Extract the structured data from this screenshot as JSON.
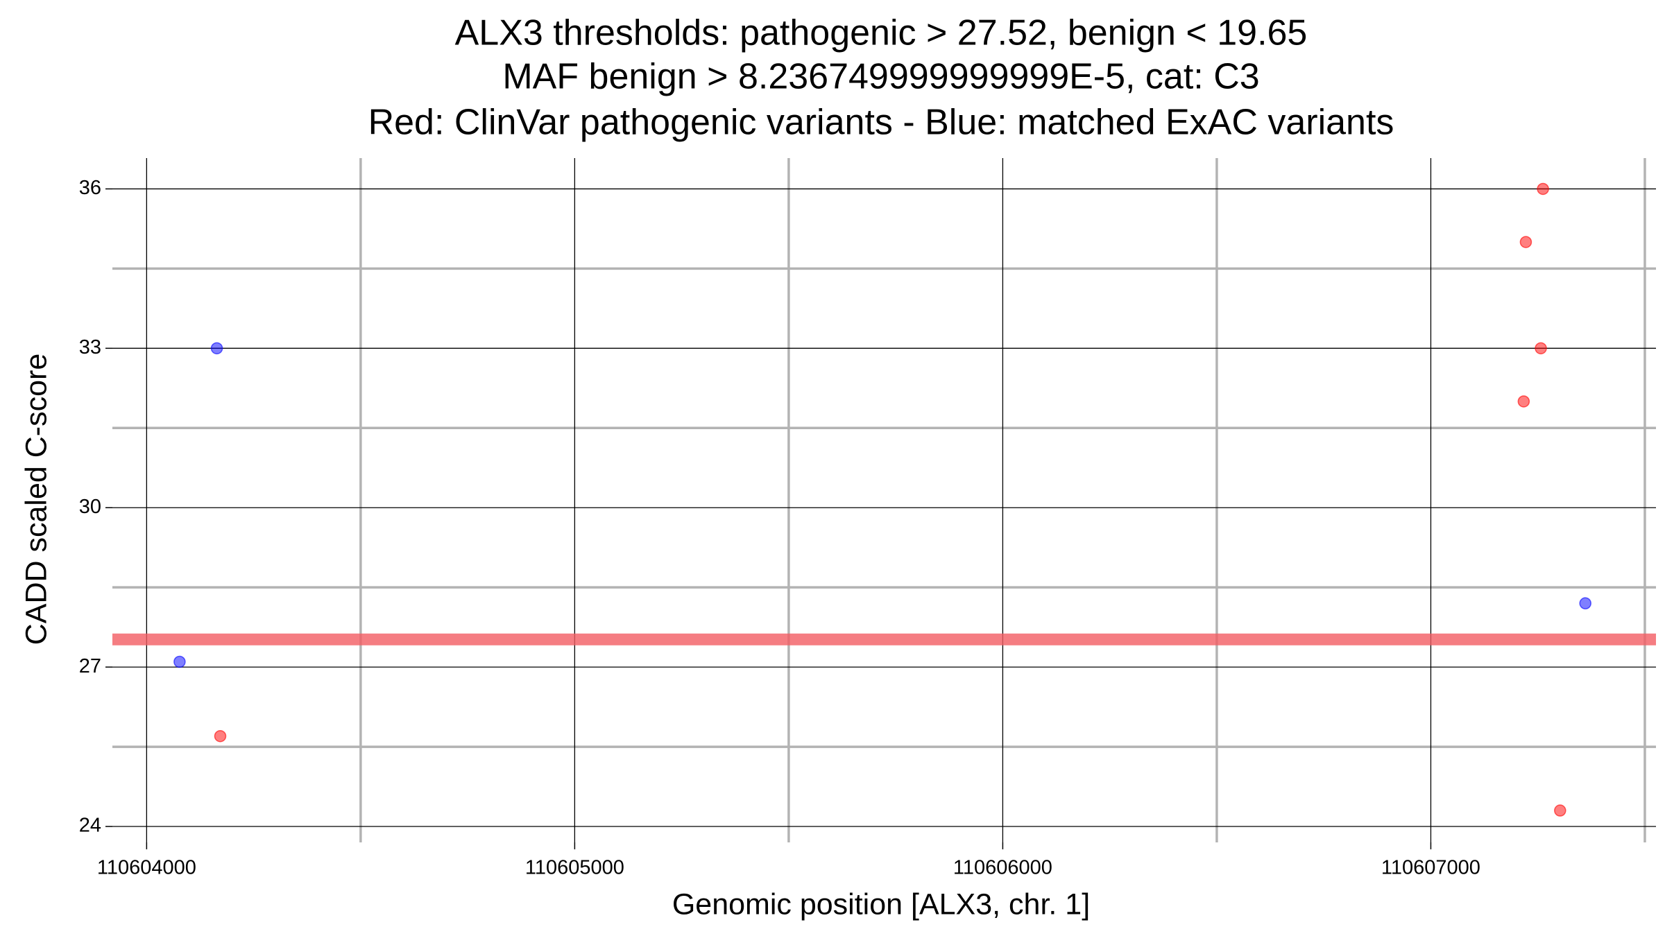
{
  "chart_data": {
    "type": "scatter",
    "title": [
      "ALX3 thresholds: pathogenic > 27.52, benign < 19.65",
      "MAF benign > 8.236749999999999E-5, cat: C3",
      "Red: ClinVar pathogenic variants - Blue: matched ExAC variants"
    ],
    "x_label": "Genomic position [ALX3, chr. 1]",
    "y_label": "CADD scaled C-score",
    "xlim": [
      110603920,
      110607526
    ],
    "ylim": [
      23.7,
      36.58
    ],
    "xticks": [
      110604000,
      110605000,
      110606000,
      110607000
    ],
    "yticks": [
      24,
      27,
      30,
      33,
      36
    ],
    "grid": true,
    "threshold": {
      "value": 27.52,
      "color": "#f25c63"
    },
    "series": [
      {
        "color": "#ff0000",
        "x": [
          110604172,
          110607262,
          110607222,
          110607257,
          110607217,
          110607302
        ],
        "values": [
          25.7,
          36,
          35,
          33,
          32,
          24.3
        ]
      },
      {
        "color": "#0000ff",
        "x": [
          110604164,
          110604077,
          110607361
        ],
        "values": [
          33,
          27.1,
          28.2
        ]
      }
    ]
  }
}
